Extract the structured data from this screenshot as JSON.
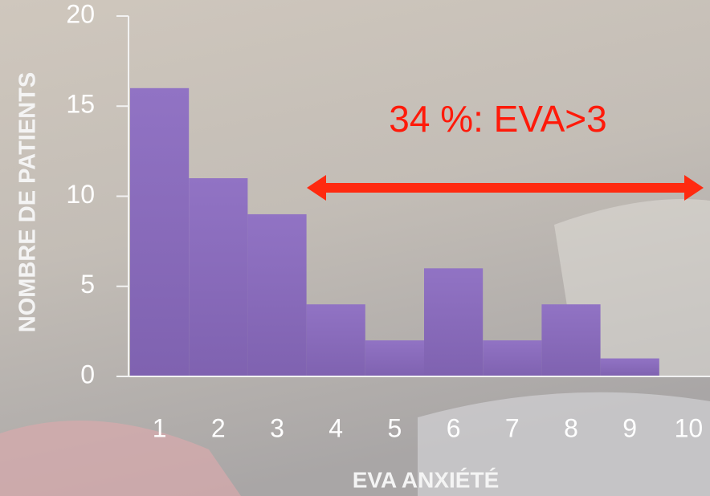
{
  "chart_data": {
    "type": "bar",
    "title": "34 %: EVA>3",
    "x_label": "EVA ANXIÉTÉ",
    "y_label": "NOMBRE DE PATIENTS",
    "categories": [
      "1",
      "2",
      "3",
      "4",
      "5",
      "6",
      "7",
      "8",
      "9",
      "10"
    ],
    "values": [
      16,
      11,
      9,
      4,
      2,
      6,
      2,
      4,
      1,
      0
    ],
    "color": "#8c6bbd",
    "ylim": [
      0,
      20
    ],
    "yticks": [
      0,
      5,
      10,
      15,
      20
    ],
    "grid": false
  }
}
